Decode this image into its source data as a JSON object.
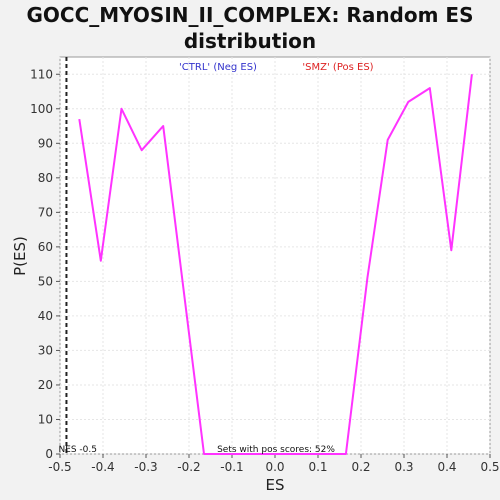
{
  "chart_data": {
    "type": "line",
    "title_lines": [
      "GOCC_MYOSIN_II_COMPLEX: Random ES",
      "distribution"
    ],
    "xlabel": "ES",
    "ylabel": "P(ES)",
    "xlim": [
      -0.5,
      0.5
    ],
    "ylim": [
      0,
      115
    ],
    "xticks": [
      -0.5,
      -0.4,
      -0.3,
      -0.2,
      -0.1,
      0.0,
      0.1,
      0.2,
      0.3,
      0.4,
      0.5
    ],
    "xtick_labels": [
      "-0.5",
      "-0.4",
      "-0.3",
      "-0.2",
      "-0.1",
      "0.0",
      "0.1",
      "0.2",
      "0.3",
      "0.4",
      "0.5"
    ],
    "yticks": [
      0,
      10,
      20,
      30,
      40,
      50,
      60,
      70,
      80,
      90,
      100,
      110
    ],
    "grid": true,
    "legend": [
      {
        "label": "'CTRL' (Neg ES)",
        "color": "#3333cc"
      },
      {
        "label": "'SMZ' (Pos ES)",
        "color": "#dd2222"
      }
    ],
    "series": [
      {
        "color": "#ff33ff",
        "points": [
          [
            -0.455,
            97
          ],
          [
            -0.405,
            56
          ],
          [
            -0.357,
            100
          ],
          [
            -0.31,
            88
          ],
          [
            -0.26,
            95
          ],
          [
            -0.21,
            45
          ],
          [
            -0.165,
            0
          ],
          [
            0.165,
            0
          ],
          [
            0.215,
            51
          ],
          [
            0.262,
            91
          ],
          [
            0.31,
            102
          ],
          [
            0.36,
            106
          ],
          [
            0.41,
            59
          ],
          [
            0.458,
            110
          ]
        ]
      }
    ],
    "nes_line": {
      "x": -0.485,
      "label": "NES -0.5"
    },
    "annotation": "Sets with pos scores: 52%"
  }
}
